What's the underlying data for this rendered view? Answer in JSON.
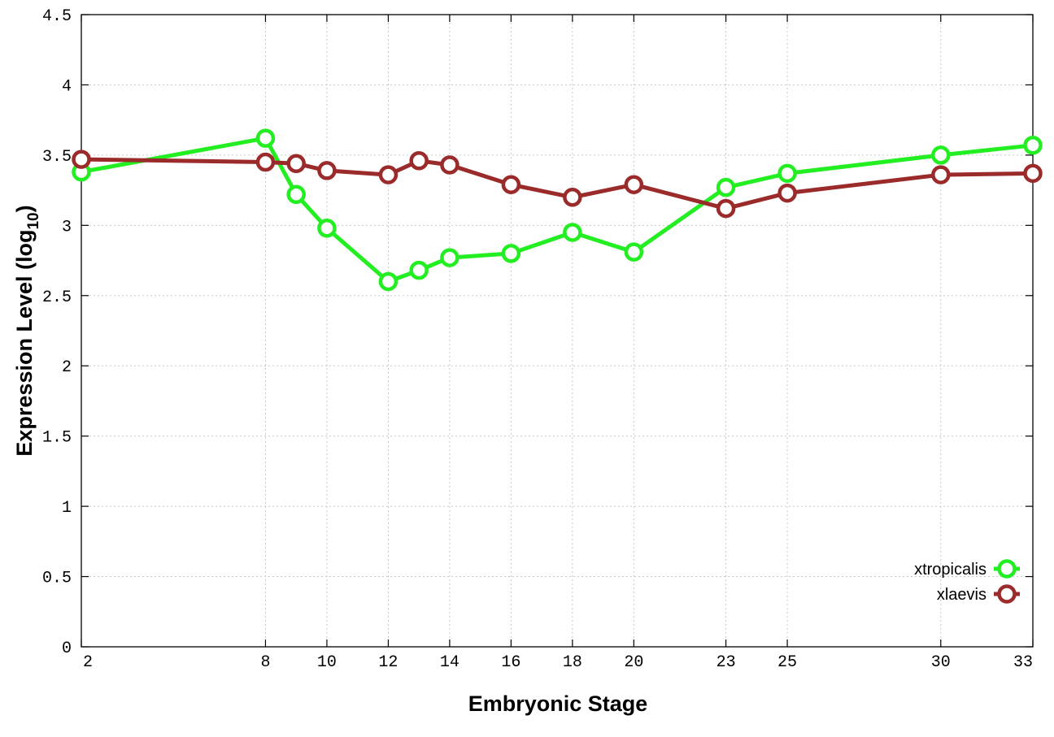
{
  "chart_data": {
    "type": "line",
    "title": "",
    "xlabel": "Embryonic Stage",
    "ylabel_main": "Expression Level (log",
    "ylabel_sub": "10",
    "ylabel_close": ")",
    "x": [
      2,
      8,
      9,
      10,
      12,
      13,
      14,
      16,
      18,
      20,
      23,
      25,
      30,
      33
    ],
    "x_ticks": [
      "2",
      "8",
      "10",
      "12",
      "14",
      "16",
      "18",
      "20",
      "23",
      "25",
      "30",
      "33"
    ],
    "x_tick_values": [
      2,
      8,
      10,
      12,
      14,
      16,
      18,
      20,
      23,
      25,
      30,
      33
    ],
    "xlim": [
      2,
      33
    ],
    "y_ticks": [
      "0",
      "0.5",
      "1",
      "1.5",
      "2",
      "2.5",
      "3",
      "3.5",
      "4",
      "4.5"
    ],
    "y_tick_values": [
      0,
      0.5,
      1,
      1.5,
      2,
      2.5,
      3,
      3.5,
      4,
      4.5
    ],
    "ylim": [
      0,
      4.5
    ],
    "grid": true,
    "legend_position": "bottom-right",
    "series": [
      {
        "name": "xtropicalis",
        "color": "#22ee22",
        "values": [
          3.38,
          3.62,
          3.22,
          2.98,
          2.6,
          2.68,
          2.77,
          2.8,
          2.95,
          2.81,
          3.27,
          3.37,
          3.5,
          3.57
        ]
      },
      {
        "name": "xlaevis",
        "color": "#9b2a2a",
        "values": [
          3.47,
          3.45,
          3.44,
          3.39,
          3.36,
          3.46,
          3.43,
          3.29,
          3.2,
          3.29,
          3.12,
          3.23,
          3.36,
          3.37
        ]
      }
    ]
  }
}
